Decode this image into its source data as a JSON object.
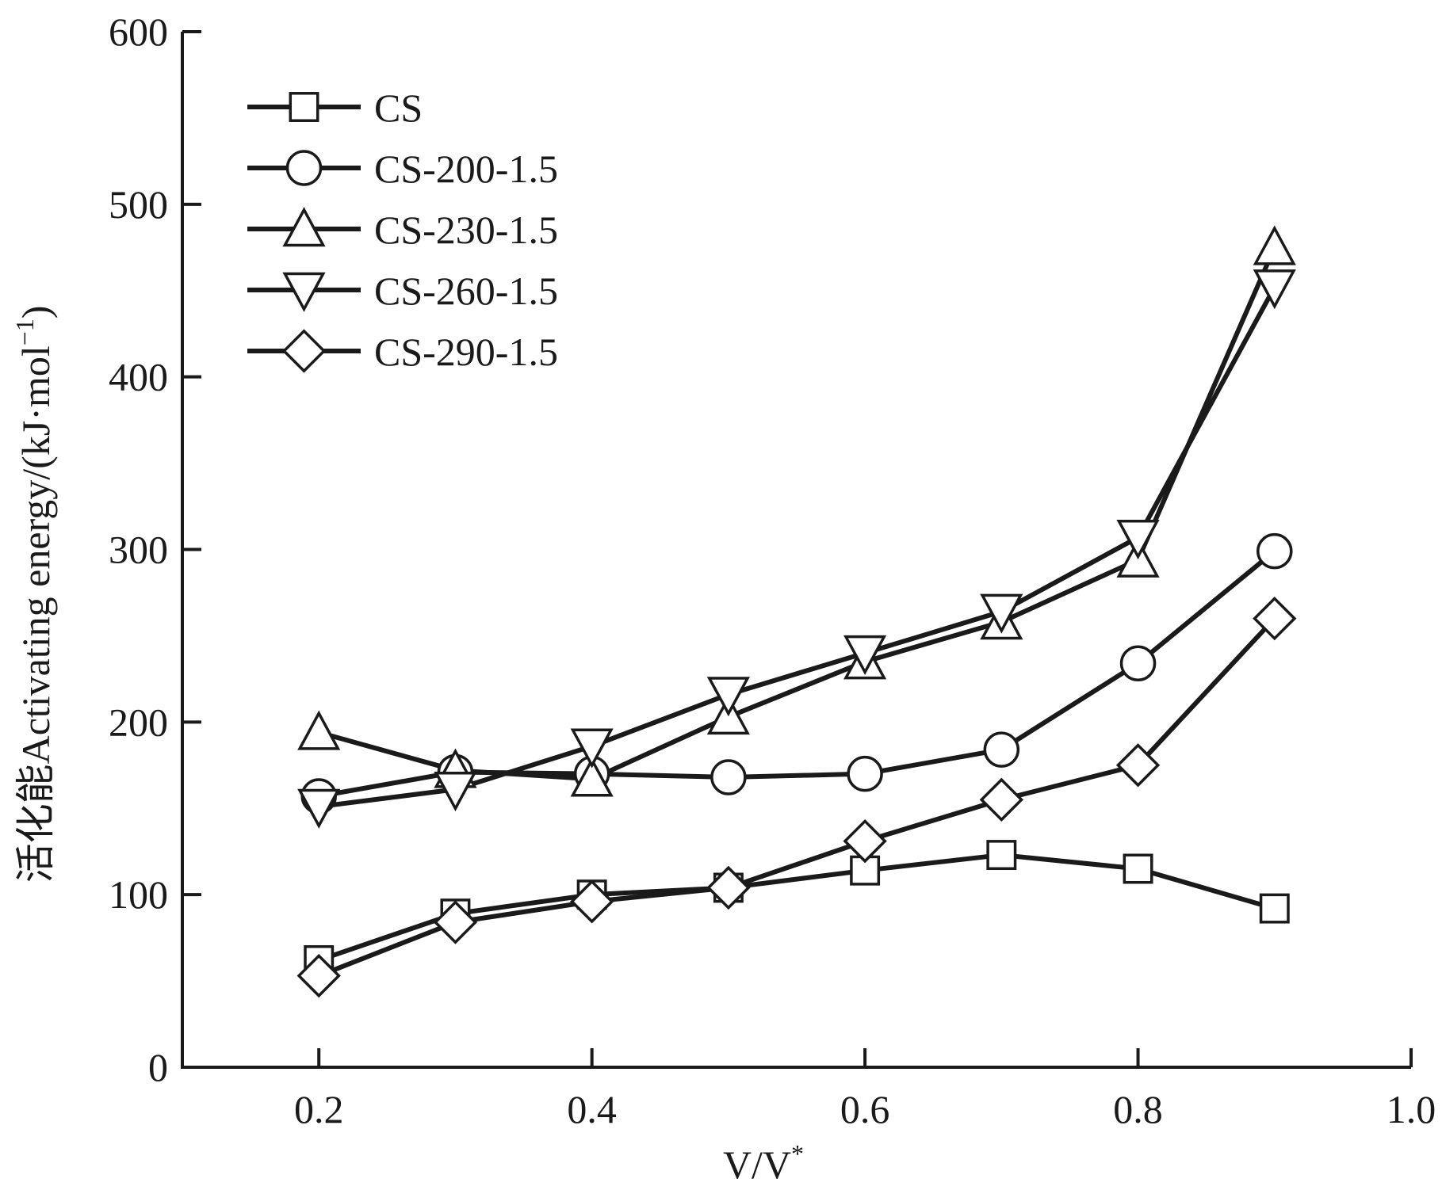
{
  "chart_data": {
    "type": "line",
    "title": "",
    "xlabel": "V/V",
    "xlabel_superscript": "*",
    "ylabel": "活化能Activating energy/(kJ·mol",
    "ylabel_superscript": "−1",
    "ylabel_close": ")",
    "xlim": [
      0.1,
      1.0
    ],
    "ylim": [
      0,
      600
    ],
    "xticks": [
      0.2,
      0.4,
      0.6,
      0.8,
      1.0
    ],
    "xtick_labels": [
      "0.2",
      "0.4",
      "0.6",
      "0.8",
      "1.0"
    ],
    "yticks": [
      0,
      100,
      200,
      300,
      400,
      500,
      600
    ],
    "ytick_labels": [
      "0",
      "100",
      "200",
      "300",
      "400",
      "500",
      "600"
    ],
    "grid": false,
    "legend_position": "top-left",
    "x": [
      0.2,
      0.3,
      0.4,
      0.5,
      0.6,
      0.7,
      0.8,
      0.9
    ],
    "series": [
      {
        "name": "CS",
        "marker": "square",
        "values": [
          62,
          89,
          100,
          104,
          114,
          123,
          115,
          92
        ]
      },
      {
        "name": "CS-200-1.5",
        "marker": "circle",
        "values": [
          157,
          171,
          170,
          168,
          170,
          184,
          234,
          299
        ]
      },
      {
        "name": "CS-230-1.5",
        "marker": "triangle-up",
        "values": [
          194,
          172,
          167,
          203,
          235,
          258,
          294,
          475
        ]
      },
      {
        "name": "CS-260-1.5",
        "marker": "triangle-down",
        "values": [
          151,
          161,
          186,
          216,
          240,
          264,
          307,
          452
        ]
      },
      {
        "name": "CS-290-1.5",
        "marker": "diamond",
        "values": [
          53,
          84,
          96,
          104,
          131,
          155,
          175,
          260
        ]
      }
    ],
    "colors": {
      "line": "#1a1a1a",
      "marker_fill": "#ffffff",
      "axis": "#1a1a1a"
    }
  }
}
